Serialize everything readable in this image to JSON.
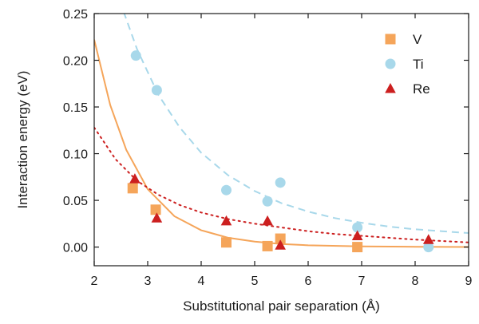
{
  "chart_data": {
    "type": "scatter",
    "title": "",
    "xlabel": "Substitutional pair separation (Å)",
    "ylabel": "Interaction energy (eV)",
    "xlim": [
      2,
      9
    ],
    "ylim": [
      -0.02,
      0.25
    ],
    "xticks": [
      2,
      3,
      4,
      5,
      6,
      7,
      8,
      9
    ],
    "xtick_labels": [
      "2",
      "3",
      "4",
      "5",
      "6",
      "7",
      "8",
      "9"
    ],
    "yticks": [
      0.0,
      0.05,
      0.1,
      0.15,
      0.2,
      0.25
    ],
    "ytick_labels": [
      "0.00",
      "0.05",
      "0.10",
      "0.15",
      "0.20",
      "0.25"
    ],
    "grid": false,
    "legend_position": "top-right",
    "series": [
      {
        "name": "V",
        "marker": "square",
        "color": "#f5a55a",
        "line_style": "solid",
        "points": [
          {
            "x": 2.72,
            "y": 0.063
          },
          {
            "x": 3.15,
            "y": 0.04
          },
          {
            "x": 4.47,
            "y": 0.005
          },
          {
            "x": 5.24,
            "y": 0.001
          },
          {
            "x": 5.48,
            "y": 0.009
          },
          {
            "x": 6.92,
            "y": 0.0
          }
        ],
        "fit": [
          {
            "x": 2.0,
            "y": 0.222
          },
          {
            "x": 2.3,
            "y": 0.152
          },
          {
            "x": 2.6,
            "y": 0.104
          },
          {
            "x": 3.0,
            "y": 0.062
          },
          {
            "x": 3.5,
            "y": 0.033
          },
          {
            "x": 4.0,
            "y": 0.018
          },
          {
            "x": 4.5,
            "y": 0.01
          },
          {
            "x": 5.0,
            "y": 0.0058
          },
          {
            "x": 5.5,
            "y": 0.0033
          },
          {
            "x": 6.0,
            "y": 0.0019
          },
          {
            "x": 7.0,
            "y": 0.0007
          },
          {
            "x": 8.0,
            "y": 0.0003
          },
          {
            "x": 9.0,
            "y": 0.0001
          }
        ]
      },
      {
        "name": "Ti",
        "marker": "circle",
        "color": "#a8d8ea",
        "line_style": "dashed",
        "points": [
          {
            "x": 2.78,
            "y": 0.205
          },
          {
            "x": 3.17,
            "y": 0.168
          },
          {
            "x": 4.47,
            "y": 0.061
          },
          {
            "x": 5.24,
            "y": 0.049
          },
          {
            "x": 5.48,
            "y": 0.069
          },
          {
            "x": 6.92,
            "y": 0.021
          },
          {
            "x": 8.25,
            "y": 0.0
          }
        ],
        "fit": [
          {
            "x": 2.55,
            "y": 0.252
          },
          {
            "x": 2.8,
            "y": 0.212
          },
          {
            "x": 3.2,
            "y": 0.163
          },
          {
            "x": 3.6,
            "y": 0.128
          },
          {
            "x": 4.0,
            "y": 0.101
          },
          {
            "x": 4.5,
            "y": 0.077
          },
          {
            "x": 5.0,
            "y": 0.06
          },
          {
            "x": 5.5,
            "y": 0.047
          },
          {
            "x": 6.0,
            "y": 0.038
          },
          {
            "x": 6.5,
            "y": 0.031
          },
          {
            "x": 7.0,
            "y": 0.026
          },
          {
            "x": 7.5,
            "y": 0.022
          },
          {
            "x": 8.0,
            "y": 0.019
          },
          {
            "x": 8.5,
            "y": 0.017
          },
          {
            "x": 9.0,
            "y": 0.015
          }
        ]
      },
      {
        "name": "Re",
        "marker": "triangle",
        "color": "#cc1f1f",
        "line_style": "dotted",
        "points": [
          {
            "x": 2.76,
            "y": 0.073
          },
          {
            "x": 3.17,
            "y": 0.031
          },
          {
            "x": 4.47,
            "y": 0.028
          },
          {
            "x": 5.24,
            "y": 0.028
          },
          {
            "x": 5.48,
            "y": 0.002
          },
          {
            "x": 6.92,
            "y": 0.012
          },
          {
            "x": 8.25,
            "y": 0.008
          }
        ],
        "fit": [
          {
            "x": 2.0,
            "y": 0.128
          },
          {
            "x": 2.4,
            "y": 0.094
          },
          {
            "x": 2.8,
            "y": 0.071
          },
          {
            "x": 3.2,
            "y": 0.056
          },
          {
            "x": 3.6,
            "y": 0.045
          },
          {
            "x": 4.0,
            "y": 0.037
          },
          {
            "x": 4.5,
            "y": 0.03
          },
          {
            "x": 5.0,
            "y": 0.025
          },
          {
            "x": 5.5,
            "y": 0.021
          },
          {
            "x": 6.0,
            "y": 0.017
          },
          {
            "x": 6.5,
            "y": 0.014
          },
          {
            "x": 7.0,
            "y": 0.012
          },
          {
            "x": 7.5,
            "y": 0.01
          },
          {
            "x": 8.0,
            "y": 0.008
          },
          {
            "x": 8.5,
            "y": 0.0065
          },
          {
            "x": 9.0,
            "y": 0.005
          }
        ]
      }
    ]
  }
}
